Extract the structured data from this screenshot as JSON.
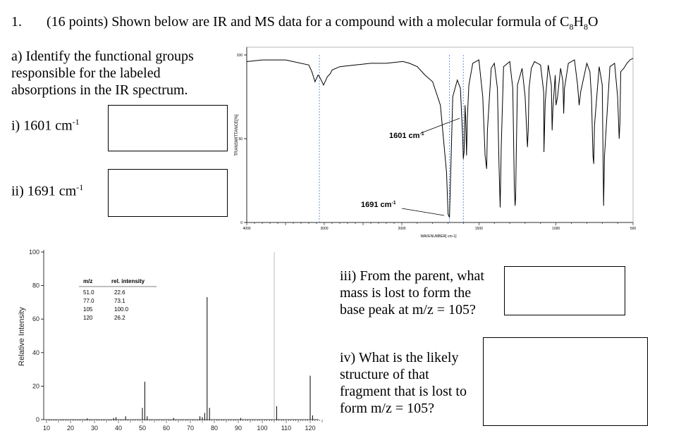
{
  "question": {
    "number": "1.",
    "stem_pre": "(16 points) Shown below are IR and MS data for a compound with a molecular formula of C",
    "formula_c_sub": "8",
    "formula_h": "H",
    "formula_h_sub": "8",
    "formula_o": "O"
  },
  "part_a": {
    "prompt": "a) Identify the functional groups responsible for the labeled absorptions in the IR spectrum.",
    "i_label": "i) 1601 cm",
    "i_sup": "-1",
    "ii_label": "ii) 1691 cm",
    "ii_sup": "-1"
  },
  "ir": {
    "ylabel": "TRANSMITTANCE[%]",
    "xlabel": "WAVENUMBER[ cm-1]",
    "y_ticks": [
      "100",
      "50",
      "0"
    ],
    "x_ticks": [
      "4000",
      "3000",
      "2000",
      "1500",
      "1000",
      "500"
    ],
    "annotation_1601": "1601 cm",
    "annotation_1691": "1691 cm",
    "annotation_sup": "-1"
  },
  "ms": {
    "ylabel": "Relative Intensity",
    "table_header_mz": "m/z",
    "table_header_int": "rel. intensity",
    "table_rows": [
      {
        "mz": "51.0",
        "int": "22.6"
      },
      {
        "mz": "77.0",
        "int": "73.1"
      },
      {
        "mz": "105",
        "int": "100.0"
      },
      {
        "mz": "120",
        "int": "26.2"
      }
    ]
  },
  "part_iii": {
    "prompt": "iii) From the parent, what mass is lost to form the base peak at m/z = 105?"
  },
  "part_iv": {
    "prompt": "iv) What is the likely structure of that fragment that is lost to form m/z = 105?"
  },
  "chart_data": [
    {
      "type": "line",
      "ylabel": "TRANSMITTANCE[%]",
      "xlabel": "WAVENUMBER[ cm-1]",
      "xlim": [
        4000,
        500
      ],
      "ylim": [
        0,
        100
      ],
      "x_ticks": [
        4000,
        3000,
        2000,
        1500,
        1000,
        500
      ],
      "y_ticks": [
        100,
        50,
        0
      ],
      "x_scale": "two linear segments (4000-2000 and 2000-500)",
      "reference_lines_x": [
        3063,
        1691,
        1601
      ],
      "series": [
        {
          "x": [
            4000,
            3800,
            3500,
            3200,
            3160,
            3120,
            3080,
            3063,
            3040,
            3010,
            2980,
            2960,
            2940,
            2920,
            2900,
            2800,
            2600,
            2400,
            2200,
            2000,
            1990,
            1950,
            1900,
            1850,
            1800,
            1750,
            1710,
            1700,
            1691,
            1680,
            1670,
            1640,
            1620,
            1605,
            1601,
            1596,
            1590,
            1585,
            1580,
            1575,
            1565,
            1540,
            1500,
            1475,
            1460,
            1450,
            1445,
            1420,
            1400,
            1380,
            1370,
            1362,
            1355,
            1340,
            1300,
            1280,
            1270,
            1265,
            1262,
            1258,
            1250,
            1220,
            1200,
            1185,
            1180,
            1175,
            1160,
            1140,
            1100,
            1080,
            1078,
            1070,
            1050,
            1030,
            1025,
            1020,
            1005,
            1000,
            990,
            970,
            955,
            950,
            945,
            920,
            880,
            860,
            850,
            840,
            800,
            780,
            770,
            760,
            755,
            750,
            720,
            700,
            691,
            685,
            650,
            620,
            600,
            590,
            585,
            580,
            560,
            540,
            520,
            500
          ],
          "y": [
            96,
            97,
            97,
            94,
            90,
            84,
            88,
            87,
            85,
            82,
            85,
            87,
            88,
            89,
            91,
            93,
            94,
            95,
            95,
            96,
            96,
            95,
            93,
            88,
            84,
            70,
            30,
            5,
            3,
            40,
            75,
            85,
            80,
            50,
            38,
            42,
            70,
            60,
            40,
            62,
            82,
            95,
            97,
            75,
            40,
            32,
            55,
            92,
            95,
            80,
            35,
            9,
            45,
            93,
            96,
            80,
            20,
            10,
            15,
            40,
            82,
            92,
            75,
            45,
            55,
            80,
            92,
            96,
            94,
            78,
            42,
            72,
            94,
            82,
            55,
            68,
            88,
            70,
            75,
            92,
            84,
            65,
            80,
            95,
            97,
            82,
            70,
            78,
            95,
            90,
            75,
            40,
            35,
            58,
            93,
            82,
            10,
            40,
            93,
            95,
            75,
            50,
            60,
            90,
            92,
            95,
            97,
            98
          ]
        }
      ]
    },
    {
      "type": "bar",
      "ylabel": "Relative Intensity",
      "xlabel": "",
      "xlim": [
        10,
        125
      ],
      "ylim": [
        0,
        100
      ],
      "x_ticks": [
        10,
        20,
        30,
        40,
        50,
        60,
        70,
        80,
        90,
        100,
        110,
        120
      ],
      "y_ticks": [
        0,
        20,
        40,
        60,
        80,
        100
      ],
      "peaks": [
        {
          "mz": 27,
          "int": 0.8
        },
        {
          "mz": 38,
          "int": 1.0
        },
        {
          "mz": 39,
          "int": 1.5
        },
        {
          "mz": 43,
          "int": 2.0
        },
        {
          "mz": 50,
          "int": 7.0
        },
        {
          "mz": 51,
          "int": 22.6
        },
        {
          "mz": 52,
          "int": 2.0
        },
        {
          "mz": 63,
          "int": 1.0
        },
        {
          "mz": 74,
          "int": 2.0
        },
        {
          "mz": 75,
          "int": 1.5
        },
        {
          "mz": 76,
          "int": 4.0
        },
        {
          "mz": 77,
          "int": 73.1
        },
        {
          "mz": 78,
          "int": 7.0
        },
        {
          "mz": 91,
          "int": 1.0
        },
        {
          "mz": 105,
          "int": 100.0
        },
        {
          "mz": 106,
          "int": 8.0
        },
        {
          "mz": 120,
          "int": 26.2
        },
        {
          "mz": 121,
          "int": 2.5
        }
      ]
    }
  ]
}
